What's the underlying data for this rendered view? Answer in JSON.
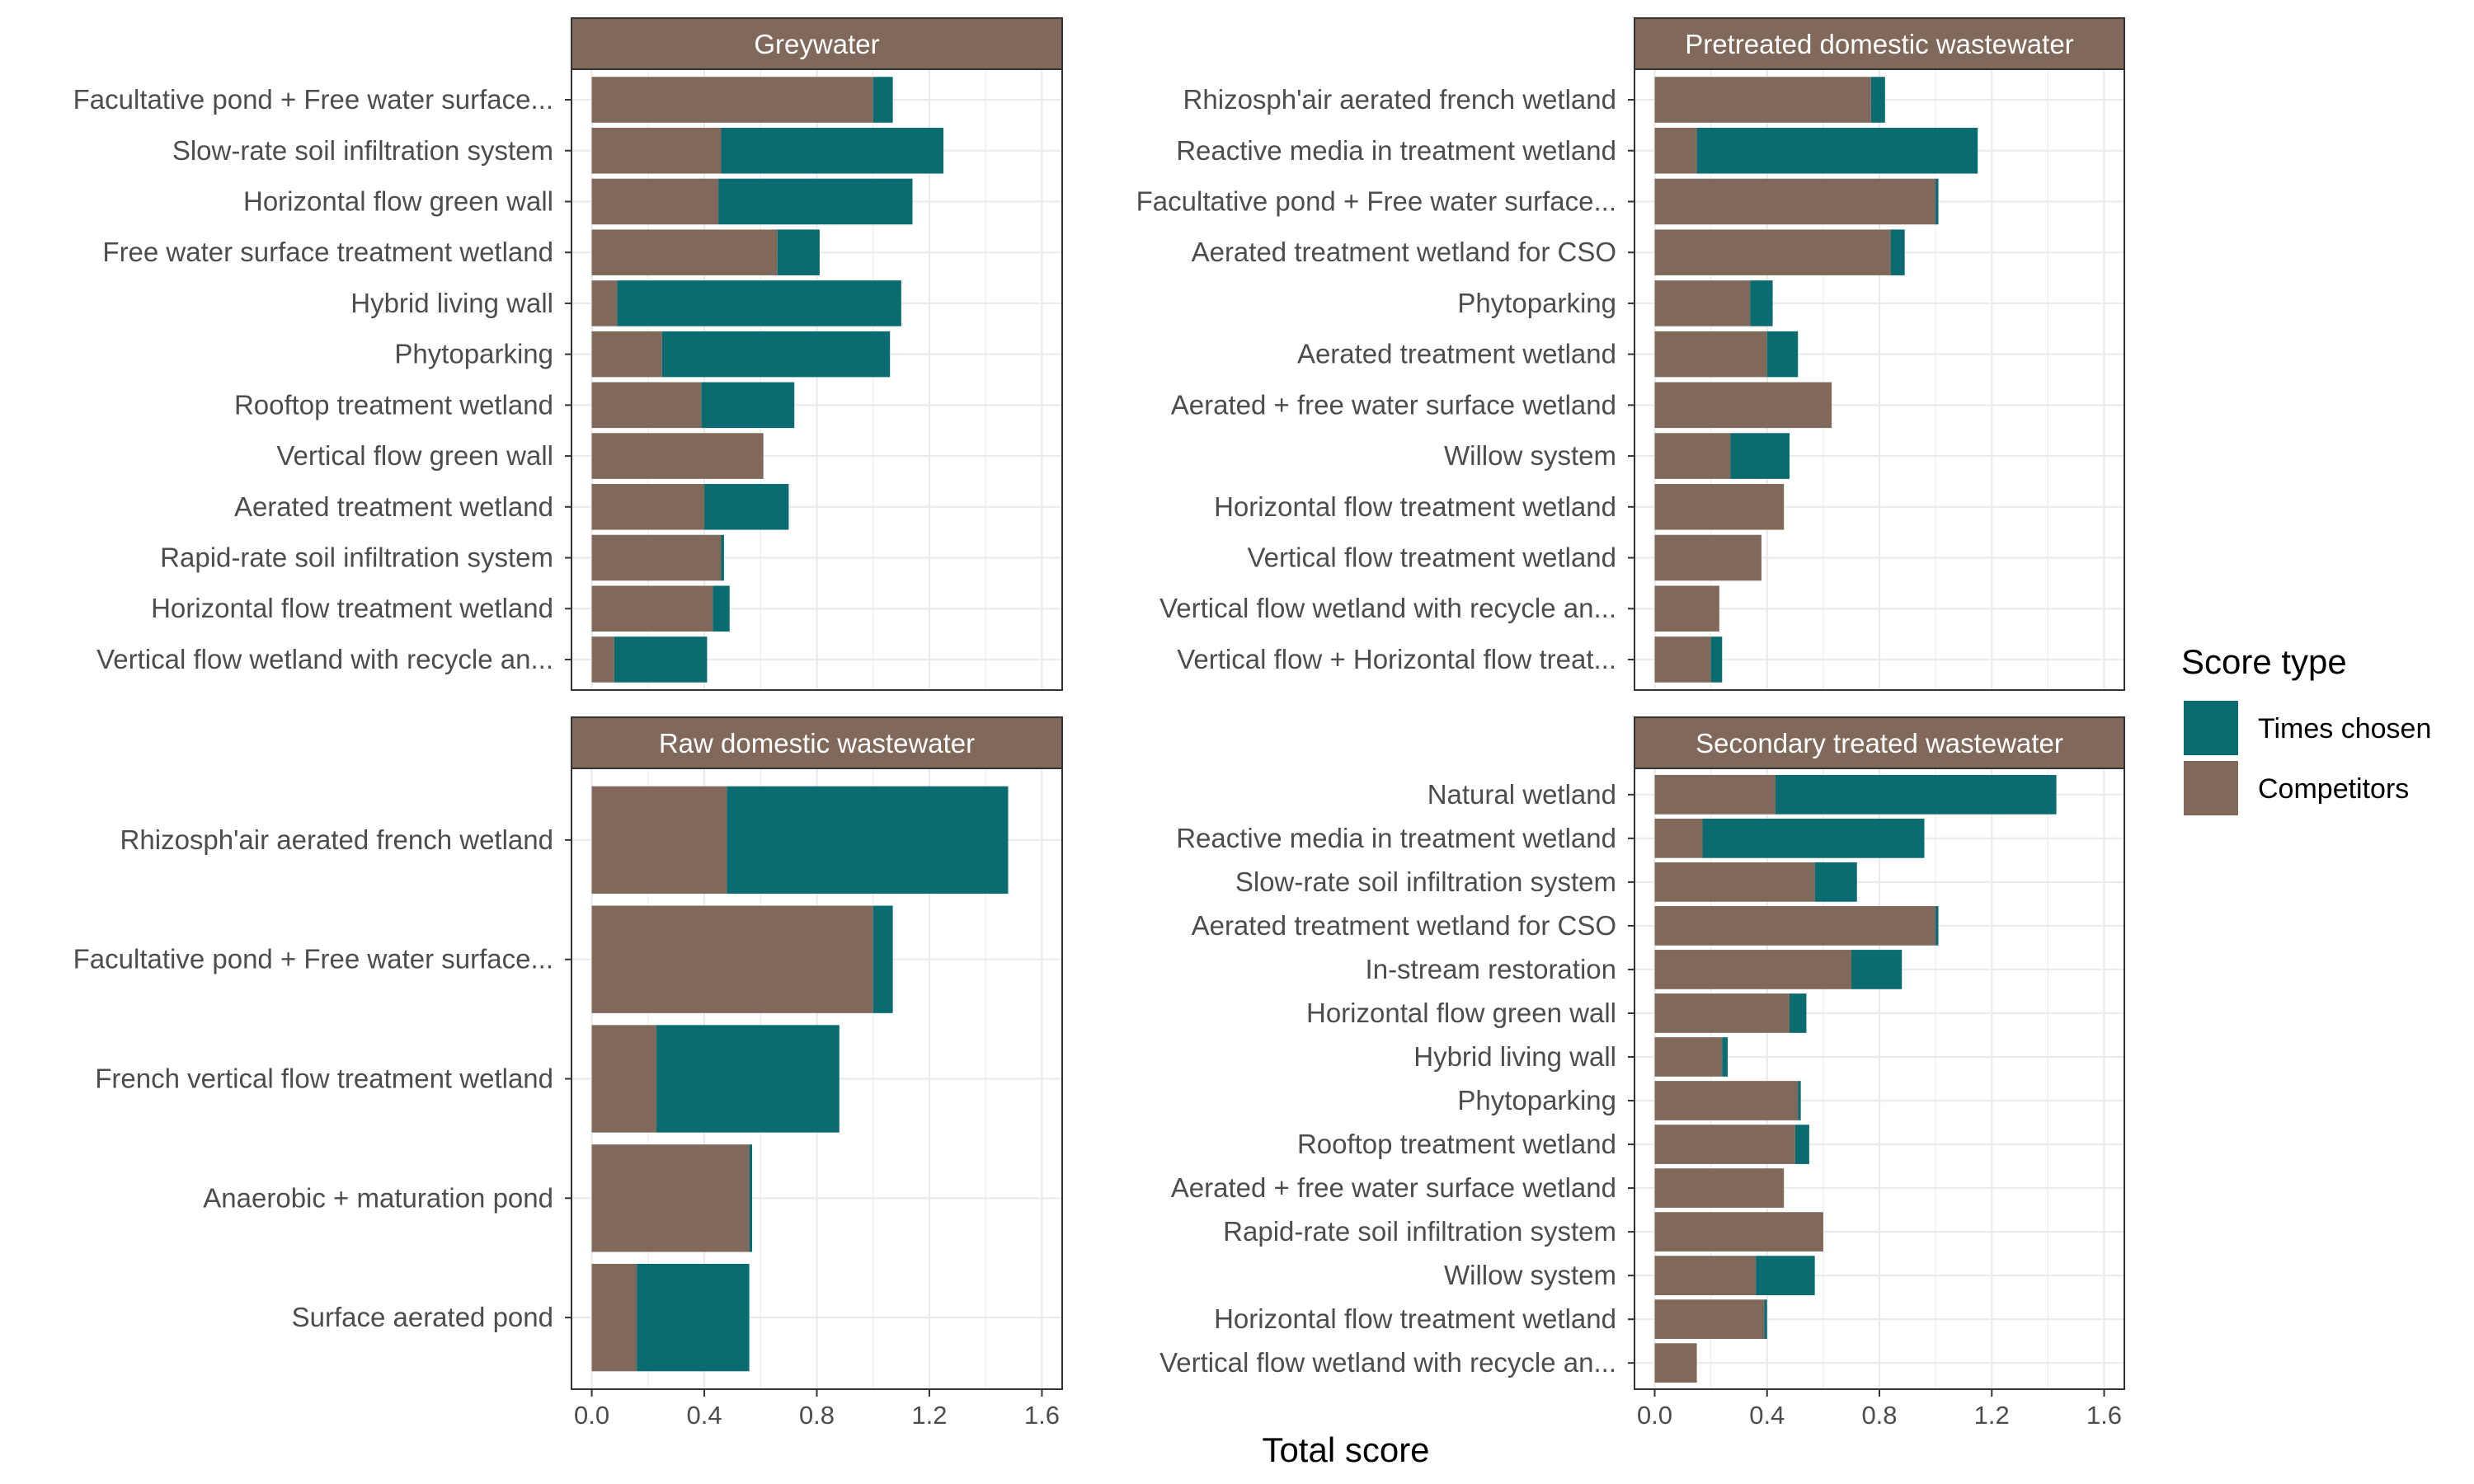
{
  "chart_data": {
    "type": "bar",
    "orientation": "horizontal",
    "stacked": true,
    "xlabel": "Total score",
    "xlim": [
      0,
      1.6
    ],
    "xticks": [
      "0.0",
      "0.4",
      "0.8",
      "1.2",
      "1.6"
    ],
    "grid": true,
    "legend": {
      "title": "Score type",
      "position": "right",
      "entries": [
        {
          "name": "Times chosen",
          "color": "#0a6b70"
        },
        {
          "name": "Competitors",
          "color": "#80685a"
        }
      ]
    },
    "colors": {
      "competitors": "#80685a",
      "chosen": "#0a6b70",
      "strip": "#80685a"
    },
    "facets": [
      {
        "title": "Greywater",
        "categories": [
          "Facultative pond + Free water surface...",
          "Slow-rate soil infiltration system",
          "Horizontal flow green wall",
          "Free water surface treatment wetland",
          "Hybrid living wall",
          "Phytoparking",
          "Rooftop treatment wetland",
          "Vertical flow green wall",
          "Aerated treatment wetland",
          "Rapid-rate soil  infiltration system",
          "Horizontal flow treatment wetland",
          "Vertical flow wetland with recycle an..."
        ],
        "series": [
          {
            "name": "Competitors",
            "values": [
              1.0,
              0.46,
              0.45,
              0.66,
              0.09,
              0.25,
              0.39,
              0.61,
              0.4,
              0.46,
              0.43,
              0.08
            ]
          },
          {
            "name": "Times chosen",
            "values": [
              0.07,
              0.79,
              0.69,
              0.15,
              1.01,
              0.81,
              0.33,
              0.0,
              0.3,
              0.01,
              0.06,
              0.33
            ]
          }
        ]
      },
      {
        "title": "Pretreated domestic wastewater",
        "categories": [
          "Rhizosph'air aerated french wetland",
          "Reactive media in treatment wetland",
          "Facultative pond + Free water surface...",
          "Aerated treatment wetland for CSO",
          "Phytoparking",
          "Aerated treatment wetland",
          "Aerated + free water surface wetland",
          "Willow system",
          "Horizontal flow treatment wetland",
          "Vertical flow treatment wetland",
          "Vertical flow wetland with recycle an...",
          "Vertical flow + Horizontal flow treat..."
        ],
        "series": [
          {
            "name": "Competitors",
            "values": [
              0.77,
              0.15,
              1.0,
              0.84,
              0.34,
              0.4,
              0.63,
              0.27,
              0.46,
              0.38,
              0.23,
              0.2
            ]
          },
          {
            "name": "Times chosen",
            "values": [
              0.05,
              1.0,
              0.01,
              0.05,
              0.08,
              0.11,
              0.0,
              0.21,
              0.0,
              0.0,
              0.0,
              0.04
            ]
          }
        ]
      },
      {
        "title": "Raw domestic wastewater",
        "categories": [
          "Rhizosph'air aerated french wetland",
          "Facultative pond + Free water surface...",
          "French vertical flow treatment wetland",
          "Anaerobic + maturation pond",
          "Surface aerated pond"
        ],
        "series": [
          {
            "name": "Competitors",
            "values": [
              0.48,
              1.0,
              0.23,
              0.56,
              0.16
            ]
          },
          {
            "name": "Times chosen",
            "values": [
              1.0,
              0.07,
              0.65,
              0.01,
              0.4
            ]
          }
        ]
      },
      {
        "title": "Secondary treated wastewater",
        "categories": [
          "Natural wetland",
          "Reactive media in treatment wetland",
          "Slow-rate soil infiltration system",
          "Aerated treatment wetland for CSO",
          "In-stream restoration",
          "Horizontal flow green wall",
          "Hybrid living wall",
          "Phytoparking",
          "Rooftop treatment wetland",
          "Aerated + free water surface wetland",
          "Rapid-rate soil  infiltration system",
          "Willow system",
          "Horizontal flow treatment wetland",
          "Vertical flow wetland with recycle an..."
        ],
        "series": [
          {
            "name": "Competitors",
            "values": [
              0.43,
              0.17,
              0.57,
              1.0,
              0.7,
              0.48,
              0.24,
              0.51,
              0.5,
              0.46,
              0.6,
              0.36,
              0.39,
              0.15
            ]
          },
          {
            "name": "Times chosen",
            "values": [
              1.0,
              0.79,
              0.15,
              0.01,
              0.18,
              0.06,
              0.02,
              0.01,
              0.05,
              0.0,
              0.0,
              0.21,
              0.01,
              0.0
            ]
          }
        ]
      }
    ]
  }
}
